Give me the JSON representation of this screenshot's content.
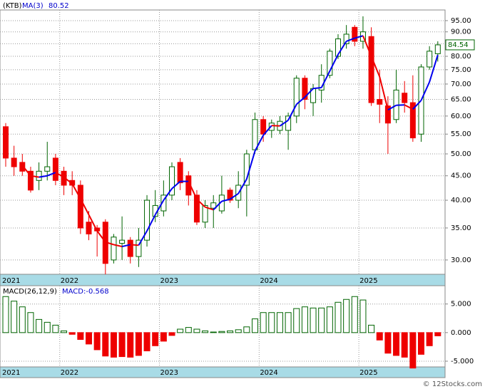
{
  "chart_data": [
    {
      "type": "candlestick",
      "title": "(KTB)",
      "categories": [
        "2021",
        null,
        null,
        null,
        null,
        null,
        null,
        "2022",
        null,
        null,
        null,
        null,
        null,
        null,
        null,
        null,
        null,
        null,
        null,
        "2023",
        null,
        null,
        null,
        null,
        null,
        null,
        null,
        null,
        null,
        null,
        null,
        "2024",
        null,
        null,
        null,
        null,
        null,
        null,
        null,
        null,
        null,
        null,
        null,
        "2025",
        null,
        null,
        null,
        null,
        null,
        null,
        null,
        null,
        null
      ],
      "open": [
        57,
        49,
        48,
        46,
        44,
        46,
        49,
        46,
        44,
        43,
        36,
        35,
        36,
        30,
        32.5,
        33,
        30.5,
        33,
        37,
        38,
        41,
        48,
        45,
        41,
        36,
        38.5,
        38,
        42,
        40,
        43,
        51,
        59,
        56,
        56,
        56,
        60,
        72,
        64,
        68,
        73,
        80,
        85,
        92,
        86,
        88,
        65,
        63,
        59,
        67,
        64,
        55,
        76,
        81
      ],
      "high": [
        58,
        52,
        50,
        47,
        48,
        53,
        50,
        47,
        46,
        44,
        38,
        35.5,
        36.5,
        34,
        37,
        33.5,
        35,
        41,
        42,
        44,
        48,
        49,
        46,
        42,
        40,
        41,
        45,
        42.5,
        46,
        51,
        61,
        60,
        59,
        60,
        61,
        73,
        73,
        70,
        77,
        83,
        89,
        93,
        93,
        97,
        92,
        75,
        66,
        75,
        71,
        73,
        77,
        84,
        86
      ],
      "low": [
        47,
        45,
        45,
        41.5,
        42,
        44,
        43,
        41,
        41,
        34,
        33,
        30.5,
        28,
        29.5,
        30,
        29.5,
        29,
        32,
        36,
        37,
        40,
        42,
        39,
        35.5,
        35,
        35,
        37.5,
        39.5,
        38.5,
        37,
        50,
        53,
        54,
        55,
        51,
        58,
        62,
        60,
        64,
        72,
        79,
        83,
        84,
        83,
        63,
        58,
        50,
        58,
        61,
        53,
        53,
        75,
        78
      ],
      "close": [
        49,
        47,
        46,
        42,
        46,
        47,
        44,
        43,
        43,
        35,
        34,
        34.5,
        29.5,
        33.5,
        33,
        30.5,
        33,
        40,
        39,
        41,
        47,
        43.5,
        41,
        36,
        39,
        39.5,
        41,
        40,
        43,
        50,
        59,
        55,
        58,
        58.5,
        60,
        72,
        65,
        68.5,
        73,
        82,
        87,
        89,
        86,
        90,
        64,
        63.5,
        58,
        68,
        64,
        54,
        76,
        82,
        84.54
      ],
      "last_close_label": "84.54",
      "up_color": "#006400",
      "down_color": "#ee0000",
      "ylim": [
        28,
        100
      ],
      "log_scale": true,
      "grid": true,
      "yticks": [
        {
          "value": 30,
          "label": "30.00"
        },
        {
          "value": 35,
          "label": "35.00"
        },
        {
          "value": 40,
          "label": "40.00"
        },
        {
          "value": 45,
          "label": "45.00"
        },
        {
          "value": 50,
          "label": "50.00"
        },
        {
          "value": 55,
          "label": "55.00"
        },
        {
          "value": 60,
          "label": "60.00"
        },
        {
          "value": 65,
          "label": "65.00"
        },
        {
          "value": 70,
          "label": "70.00"
        },
        {
          "value": 75,
          "label": "75.00"
        },
        {
          "value": 80,
          "label": "80.00"
        },
        {
          "value": 85,
          "label": "85.00"
        },
        {
          "value": 90,
          "label": "90.00"
        },
        {
          "value": 95,
          "label": "95.00"
        }
      ],
      "ma": {
        "name": "MA(3)",
        "value_label": "80.52",
        "up_color": "#0000ee",
        "down_color": "#ee0000",
        "values": [
          null,
          null,
          47.3,
          45,
          44.7,
          45,
          45.7,
          44.7,
          43.3,
          40.3,
          37.3,
          34.5,
          32.7,
          32.3,
          32,
          32.3,
          32.2,
          34.5,
          37.3,
          40,
          42.3,
          43.8,
          43.8,
          40.2,
          38.7,
          38.2,
          39.8,
          40.2,
          41.3,
          44.3,
          50.7,
          54.7,
          57.3,
          57.2,
          58.8,
          63.5,
          65.7,
          68.5,
          68.8,
          74.5,
          80.7,
          86,
          87.3,
          88.3,
          80,
          72.5,
          61.8,
          63.2,
          63.3,
          62,
          64.7,
          70.7,
          80.52
        ]
      }
    },
    {
      "type": "bar",
      "title": "MACD(26,12,9)",
      "subtitle": "MACD:-0.568",
      "values": [
        6.3,
        5.5,
        4.5,
        3.5,
        2.3,
        1.8,
        1.3,
        0.3,
        -0.3,
        -1.2,
        -2.0,
        -3.0,
        -4.1,
        -4.3,
        -4.2,
        -4.3,
        -4.0,
        -3.2,
        -2.3,
        -1.5,
        -0.5,
        0.6,
        0.9,
        0.6,
        0.3,
        0.1,
        0.2,
        0.3,
        0.5,
        1.0,
        2.4,
        3.5,
        3.5,
        3.5,
        3.5,
        4.2,
        4.5,
        4.3,
        4.3,
        4.5,
        5.3,
        5.8,
        6.3,
        5.7,
        1.3,
        -1.3,
        -3.6,
        -4.0,
        -4.3,
        -6.2,
        -3.8,
        -2.3,
        -0.568
      ],
      "positive_color": "#006400",
      "negative_color": "#ee0000",
      "ylim": [
        -6,
        8.2
      ],
      "grid": true,
      "yticks": [
        {
          "value": -5,
          "label": "-5.000"
        },
        {
          "value": 0,
          "label": "0.000"
        },
        {
          "value": 5,
          "label": "5.000"
        }
      ]
    }
  ],
  "footer": "© 12Stocks.com"
}
